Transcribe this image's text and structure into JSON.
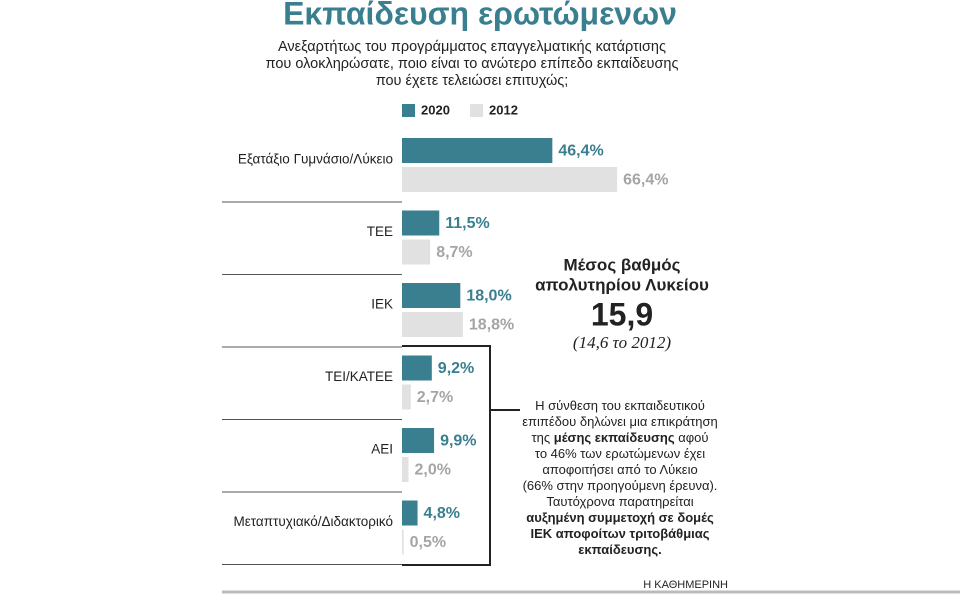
{
  "chart_data": {
    "type": "bar",
    "orientation": "horizontal",
    "title": "Εκπαίδευση ερωτώμενων",
    "subtitle": [
      "Ανεξαρτήτως του προγράμματος επαγγελματικής κατάρτισης",
      "που ολοκληρώσατε, ποιο είναι το ανώτερο επίπεδο εκπαίδευσης",
      "που έχετε τελειώσει επιτυχώς;"
    ],
    "categories": [
      "Εξατάξιο Γυμνάσιο/Λύκειο",
      "ΤΕΕ",
      "ΙΕΚ",
      "ΤΕΙ/ΚΑΤΕΕ",
      "ΑΕΙ",
      "Μεταπτυχιακό/Διδακτορικό"
    ],
    "series": [
      {
        "name": "2020",
        "color": "#3a7f8f",
        "label_color": "#3a7f8f",
        "values": [
          46.4,
          11.5,
          18.0,
          9.2,
          9.9,
          4.8
        ],
        "value_labels": [
          "46,4%",
          "11,5%",
          "18,0%",
          "9,2%",
          "9,9%",
          "4,8%"
        ]
      },
      {
        "name": "2012",
        "color": "#e1e1e1",
        "label_color": "#a5a5a5",
        "values": [
          66.4,
          8.7,
          18.8,
          2.7,
          2.0,
          0.5
        ],
        "value_labels": [
          "66,4%",
          "8,7%",
          "18,8%",
          "2,7%",
          "2,0%",
          "0,5%"
        ]
      }
    ],
    "side_box": {
      "heading": [
        "Μέσος βαθμός",
        "απολυτηρίου Λυκείου"
      ],
      "value": "15,9",
      "note": "(14,6 το 2012)"
    },
    "note": [
      [
        "Η σύνθεση του εκπαιδευτικού"
      ],
      [
        "επιπέδου δηλώνει μια επικράτηση"
      ],
      [
        "της ",
        "μέσης εκπαίδευσης",
        " αφού"
      ],
      [
        "το 46% των ερωτώμενων έχει"
      ],
      [
        "αποφοιτήσει από το Λύκειο"
      ],
      [
        "(66% στην προηγούμενη έρευνα)."
      ],
      [
        "Ταυτόχρονα παρατηρείται"
      ],
      [
        "αυξημένη συμμετοχή σε δομές"
      ],
      [
        "ΙΕΚ αποφοίτων τριτοβάθμιας"
      ],
      [
        "εκπαίδευσης."
      ]
    ],
    "source": "Η ΚΑΘΗΜΕΡΙΝΗ"
  }
}
